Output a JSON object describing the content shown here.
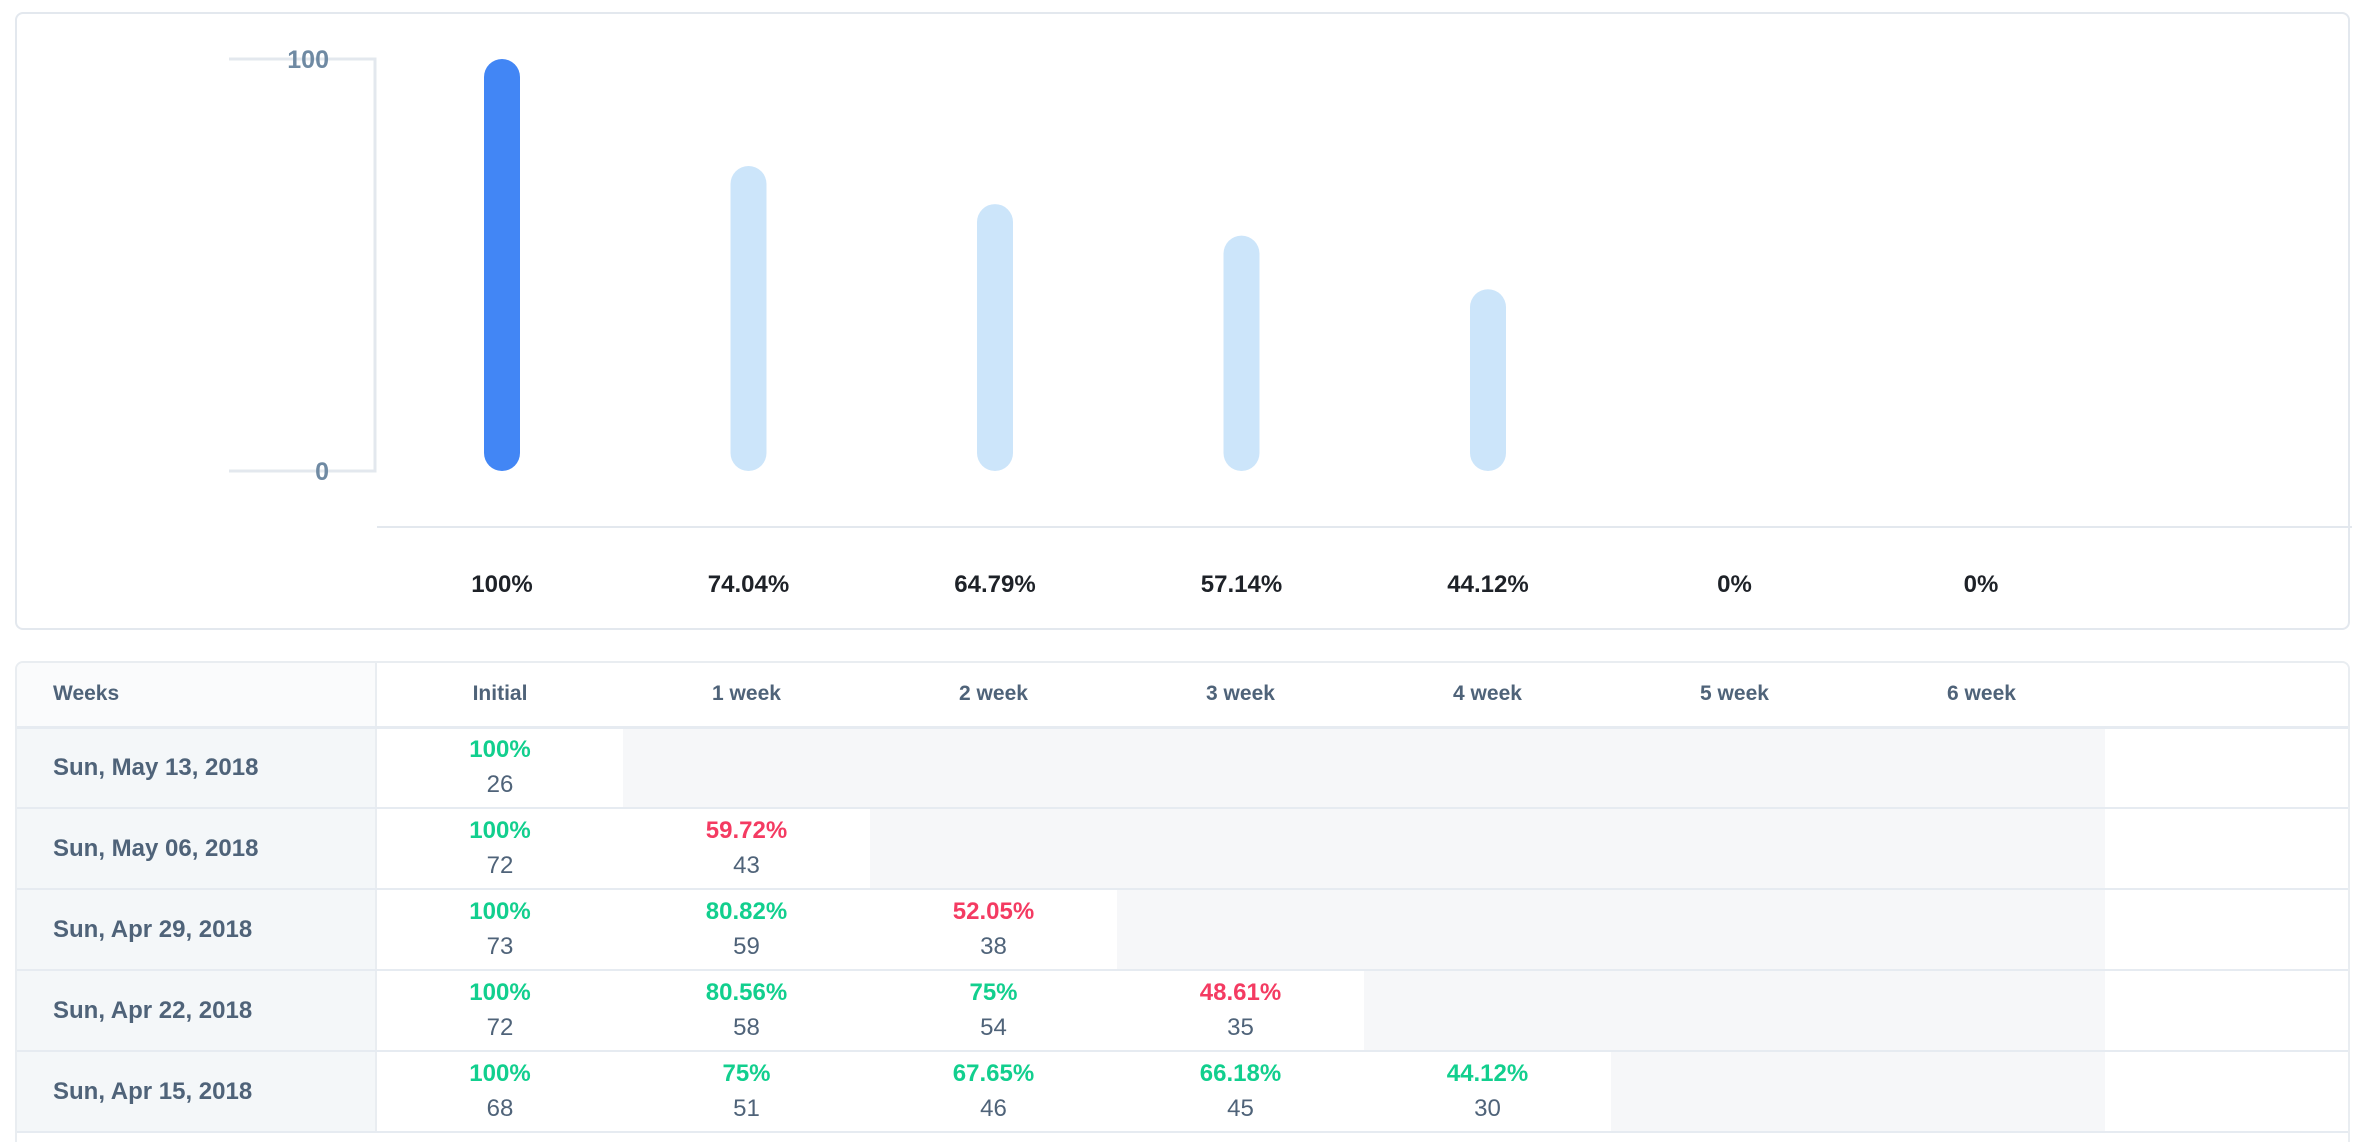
{
  "colors": {
    "primary_bar": "#4286f5",
    "secondary_bar": "#cce5fa",
    "good": "#12cf8e",
    "bad": "#f43b62"
  },
  "chart_data": {
    "type": "bar",
    "title": "",
    "xlabel": "",
    "ylabel": "",
    "ylim": [
      0,
      100
    ],
    "yticks": [
      "100",
      "0"
    ],
    "categories": [
      "Initial",
      "1 week",
      "2 week",
      "3 week",
      "4 week",
      "5 week",
      "6 week"
    ],
    "values": [
      100,
      74.04,
      64.79,
      57.14,
      44.12,
      0,
      0
    ],
    "value_labels": [
      "100%",
      "74.04%",
      "64.79%",
      "57.14%",
      "44.12%",
      "0%",
      "0%"
    ],
    "grid": false
  },
  "table": {
    "headers": [
      "Weeks",
      "Initial",
      "1 week",
      "2 week",
      "3 week",
      "4 week",
      "5 week",
      "6 week"
    ],
    "rows": [
      {
        "date": "Sun, May 13, 2018",
        "cells": [
          {
            "pct": "100%",
            "count": "26",
            "status": "good"
          }
        ]
      },
      {
        "date": "Sun, May 06, 2018",
        "cells": [
          {
            "pct": "100%",
            "count": "72",
            "status": "good"
          },
          {
            "pct": "59.72%",
            "count": "43",
            "status": "bad"
          }
        ]
      },
      {
        "date": "Sun, Apr 29, 2018",
        "cells": [
          {
            "pct": "100%",
            "count": "73",
            "status": "good"
          },
          {
            "pct": "80.82%",
            "count": "59",
            "status": "good"
          },
          {
            "pct": "52.05%",
            "count": "38",
            "status": "bad"
          }
        ]
      },
      {
        "date": "Sun, Apr 22, 2018",
        "cells": [
          {
            "pct": "100%",
            "count": "72",
            "status": "good"
          },
          {
            "pct": "80.56%",
            "count": "58",
            "status": "good"
          },
          {
            "pct": "75%",
            "count": "54",
            "status": "good"
          },
          {
            "pct": "48.61%",
            "count": "35",
            "status": "bad"
          }
        ]
      },
      {
        "date": "Sun, Apr 15, 2018",
        "cells": [
          {
            "pct": "100%",
            "count": "68",
            "status": "good"
          },
          {
            "pct": "75%",
            "count": "51",
            "status": "good"
          },
          {
            "pct": "67.65%",
            "count": "46",
            "status": "good"
          },
          {
            "pct": "66.18%",
            "count": "45",
            "status": "good"
          },
          {
            "pct": "44.12%",
            "count": "30",
            "status": "good"
          }
        ]
      }
    ]
  }
}
